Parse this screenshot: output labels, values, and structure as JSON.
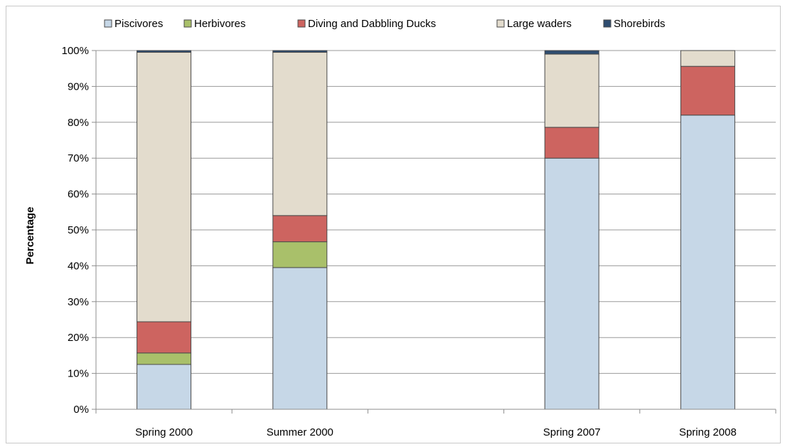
{
  "chart_data": {
    "type": "bar",
    "stacked": true,
    "percent": true,
    "categories": [
      "Spring 2000",
      "Summer 2000",
      "",
      "Spring 2007",
      "Spring 2008"
    ],
    "series": [
      {
        "name": "Piscivores",
        "color": "#c6d7e7",
        "values": [
          12.5,
          39.5,
          null,
          70,
          82
        ]
      },
      {
        "name": "Herbivores",
        "color": "#a9c06a",
        "values": [
          3.2,
          7.2,
          null,
          0,
          0
        ]
      },
      {
        "name": "Diving and Dabbling Ducks",
        "color": "#cd6460",
        "values": [
          8.7,
          7.3,
          null,
          8.6,
          13.6
        ]
      },
      {
        "name": "Large waders",
        "color": "#e3dccd",
        "values": [
          75.1,
          45.5,
          null,
          20.4,
          4.4
        ]
      },
      {
        "name": "Shorebirds",
        "color": "#2f4d70",
        "values": [
          0.5,
          0.5,
          null,
          1.0,
          0
        ]
      }
    ],
    "ylabel": "Percentage",
    "ylim": [
      0,
      100
    ],
    "yticks": [
      "0%",
      "10%",
      "20%",
      "30%",
      "40%",
      "50%",
      "60%",
      "70%",
      "80%",
      "90%",
      "100%"
    ],
    "grid": true,
    "legend_position": "top"
  }
}
